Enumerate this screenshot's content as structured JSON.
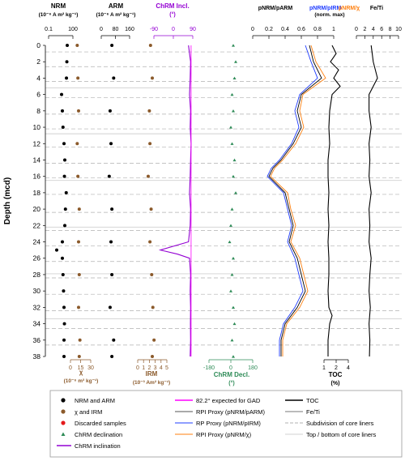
{
  "colors": {
    "nrm": "#000000",
    "chi": "#8b5a2b",
    "discarded": "#e41a1c",
    "incl": "#9400d3",
    "decl": "#2e8b57",
    "gad": "#ff00ff",
    "pnrm_parm": "#000000",
    "pnrm_pirm": "#1f3cff",
    "pnrm_chi": "#ff7f0e",
    "grid_dash": "#b0b0b0",
    "grid_solid": "#d0d0d0"
  },
  "y_axis": {
    "label": "Depth (mcd)",
    "min": 0,
    "max": 38,
    "ticks": [
      "0",
      "2",
      "4",
      "6",
      "8",
      "10",
      "12",
      "14",
      "16",
      "18",
      "20",
      "22",
      "24",
      "26",
      "28",
      "30",
      "32",
      "34",
      "36",
      "38"
    ]
  },
  "panels": {
    "nrm": {
      "title": "NRM",
      "unit": "(10⁻⁶ A m² kg⁻¹)",
      "ticks": [
        "0.1",
        "100"
      ]
    },
    "chi": {
      "bottom_ticks": [
        "0",
        "15",
        "30"
      ],
      "label": "χ",
      "unit": "(10⁻⁶ m³ kg⁻¹)"
    },
    "arm": {
      "title": "ARM",
      "unit": "(10⁻⁶ A m² kg⁻¹)",
      "ticks": [
        "0",
        "80",
        "160"
      ]
    },
    "irm": {
      "bottom_ticks": [
        "0",
        "1",
        "2",
        "3",
        "4",
        "5"
      ],
      "label": "IRM",
      "unit": "(10⁻³ Am² kg⁻¹)"
    },
    "incl": {
      "title": "ChRM Incl.",
      "unit": "(°)",
      "ticks": [
        "-90",
        "0",
        "90"
      ]
    },
    "decl": {
      "bottom_ticks": [
        "-180",
        "0",
        "180"
      ],
      "label": "ChRM Decl.",
      "unit": "(°)"
    },
    "rpi": {
      "title1": "pNRM/pARM",
      "title2": "pNRM/pIRM",
      "title3": "pNRM/χ",
      "subtitle": "(norm. max)",
      "ticks": [
        "0",
        "0.2",
        "0.4",
        "0.6",
        "0.8",
        "1"
      ]
    },
    "toc": {
      "bottom_ticks": [
        "1",
        "2",
        "4"
      ],
      "label": "TOC",
      "unit": "(%)"
    },
    "feti": {
      "title": "Fe/Ti",
      "ticks": [
        "0",
        "2",
        "4",
        "6",
        "8",
        "10"
      ]
    }
  },
  "legend": {
    "col1": [
      "NRM and ARM",
      "χ and IRM",
      "Discarded samples",
      "ChRM declination",
      "ChRM inclination"
    ],
    "col2": [
      "82.2° expected for GAD",
      "RPI Proxy (pNRM/pARM)",
      "RP Proxy (pNRM/pIRM)",
      "RPI Proxy (pNRM/χ)"
    ],
    "col3": [
      "TOC",
      "Fe/Ti",
      "Subdivision of core liners",
      "Top / bottom of core liners"
    ]
  },
  "chart_data": {
    "type": "line",
    "y_depth_label": "Depth (mcd)",
    "ylim": [
      0,
      38
    ],
    "y_reversed": true,
    "core_liner_boundaries_mcd": [
      5.2,
      10.8,
      16.5,
      22.2,
      27.9,
      33.4
    ],
    "core_liner_subdivisions_mcd": [
      0.8,
      2.6,
      4.4,
      6.4,
      8.4,
      10.2,
      12.4,
      14.4,
      16.2,
      18.2,
      20.4,
      22.6,
      24.5,
      26.4,
      28.4,
      30.4,
      32.4,
      34.6,
      36.6
    ],
    "gad_expected_inclination_deg": 82.2,
    "series": [
      {
        "name": "NRM and ARM",
        "panel": "nrm",
        "xlim": [
          0.1,
          100
        ],
        "x_scale": "log",
        "depth": [
          0,
          2,
          4,
          6,
          8,
          10,
          12,
          14,
          16,
          18,
          20,
          22,
          24,
          25,
          26,
          28,
          30,
          32,
          34,
          36,
          38
        ],
        "values": [
          20,
          18,
          16,
          4,
          5,
          6,
          8,
          10,
          9,
          15,
          12,
          10,
          5,
          1,
          5,
          6,
          7,
          8,
          9,
          8,
          8
        ]
      },
      {
        "name": "χ and IRM",
        "panel": "chi",
        "xlim": [
          0,
          30
        ],
        "depth": [
          0,
          4,
          8,
          12,
          16,
          20,
          24,
          28,
          32,
          36,
          38
        ],
        "values": [
          10,
          11,
          12,
          10,
          11,
          13,
          12,
          13,
          12,
          14,
          13
        ]
      },
      {
        "name": "ARM",
        "panel": "arm",
        "xlim": [
          0,
          160
        ],
        "depth": [
          0,
          4,
          8,
          12,
          16,
          20,
          24,
          28,
          32,
          36,
          38
        ],
        "values": [
          60,
          70,
          50,
          55,
          45,
          60,
          55,
          60,
          50,
          70,
          60
        ]
      },
      {
        "name": "IRM",
        "panel": "irm",
        "xlim": [
          0,
          5
        ],
        "depth": [
          0,
          4,
          8,
          12,
          16,
          20,
          24,
          28,
          32,
          36,
          38
        ],
        "values": [
          2.2,
          2.5,
          2.0,
          2.1,
          1.8,
          2.3,
          2.1,
          2.4,
          2.6,
          2.8,
          2.5
        ]
      },
      {
        "name": "ChRM inclination",
        "panel": "incl",
        "xlim": [
          -90,
          90
        ],
        "depth": [
          0,
          2,
          4,
          6,
          8,
          10,
          12,
          14,
          16,
          18,
          20,
          22,
          24,
          25,
          25.5,
          26,
          28,
          30,
          32,
          34,
          36,
          38
        ],
        "values": [
          70,
          80,
          78,
          75,
          80,
          78,
          82,
          80,
          78,
          75,
          80,
          78,
          70,
          -60,
          20,
          75,
          80,
          78,
          80,
          79,
          80,
          78
        ]
      },
      {
        "name": "ChRM declination",
        "panel": "decl",
        "xlim": [
          -180,
          180
        ],
        "depth": [
          0,
          2,
          4,
          6,
          8,
          10,
          12,
          14,
          16,
          18,
          20,
          22,
          24,
          26,
          28,
          30,
          32,
          34,
          36,
          38
        ],
        "values": [
          20,
          40,
          30,
          10,
          20,
          0,
          10,
          30,
          20,
          40,
          10,
          0,
          -10,
          20,
          10,
          0,
          20,
          30,
          10,
          20
        ]
      },
      {
        "name": "RPI Proxy (pNRM/pARM)",
        "panel": "rpi",
        "xlim": [
          0,
          1
        ],
        "depth": [
          0,
          2,
          4,
          6,
          8,
          10,
          12,
          14,
          15,
          16,
          18,
          20,
          22,
          24,
          26,
          28,
          30,
          32,
          34,
          36,
          38
        ],
        "values": [
          0.7,
          0.75,
          0.85,
          0.6,
          0.55,
          0.6,
          0.5,
          0.35,
          0.25,
          0.2,
          0.4,
          0.45,
          0.5,
          0.45,
          0.55,
          0.6,
          0.65,
          0.55,
          0.4,
          0.35,
          0.35
        ]
      },
      {
        "name": "RP Proxy (pNRM/pIRM)",
        "panel": "rpi",
        "xlim": [
          0,
          1
        ],
        "depth": [
          0,
          2,
          4,
          6,
          8,
          10,
          12,
          14,
          15,
          16,
          18,
          20,
          22,
          24,
          26,
          28,
          30,
          32,
          34,
          36,
          38
        ],
        "values": [
          0.65,
          0.72,
          0.8,
          0.58,
          0.52,
          0.57,
          0.48,
          0.33,
          0.23,
          0.18,
          0.38,
          0.43,
          0.48,
          0.43,
          0.52,
          0.57,
          0.62,
          0.52,
          0.38,
          0.33,
          0.33
        ]
      },
      {
        "name": "RPI Proxy (pNRM/χ)",
        "panel": "rpi",
        "xlim": [
          0,
          1
        ],
        "depth": [
          0,
          2,
          4,
          6,
          8,
          10,
          12,
          14,
          15,
          16,
          18,
          20,
          22,
          24,
          26,
          28,
          30,
          32,
          34,
          36,
          38
        ],
        "values": [
          0.72,
          0.78,
          0.9,
          0.62,
          0.58,
          0.63,
          0.53,
          0.37,
          0.27,
          0.22,
          0.43,
          0.47,
          0.53,
          0.47,
          0.58,
          0.63,
          0.68,
          0.58,
          0.42,
          0.37,
          0.37
        ]
      },
      {
        "name": "TOC",
        "panel": "toc",
        "xlim": [
          1,
          4
        ],
        "depth": [
          0,
          1,
          2,
          3,
          4,
          5,
          6,
          8,
          10,
          12,
          14,
          16,
          18,
          20,
          22,
          24,
          26,
          28,
          30,
          32,
          33,
          34,
          36,
          38
        ],
        "values": [
          2.0,
          2.5,
          1.8,
          2.8,
          2.2,
          3.0,
          2.0,
          1.7,
          1.6,
          1.7,
          1.5,
          1.5,
          1.6,
          1.5,
          1.6,
          1.5,
          1.6,
          1.6,
          1.5,
          1.6,
          2.0,
          1.7,
          1.5,
          1.5
        ]
      },
      {
        "name": "Fe/Ti",
        "panel": "feti",
        "xlim": [
          0,
          10
        ],
        "depth": [
          0,
          2,
          4,
          6,
          8,
          10,
          12,
          14,
          16,
          18,
          20,
          22,
          24,
          26,
          28,
          30,
          32,
          34,
          36,
          38
        ],
        "values": [
          3.5,
          4,
          5,
          3,
          3,
          3.5,
          3,
          3.2,
          3,
          3.5,
          3,
          3.2,
          3,
          3.5,
          3.2,
          3,
          3.3,
          3,
          3.2,
          3.1
        ]
      }
    ]
  }
}
